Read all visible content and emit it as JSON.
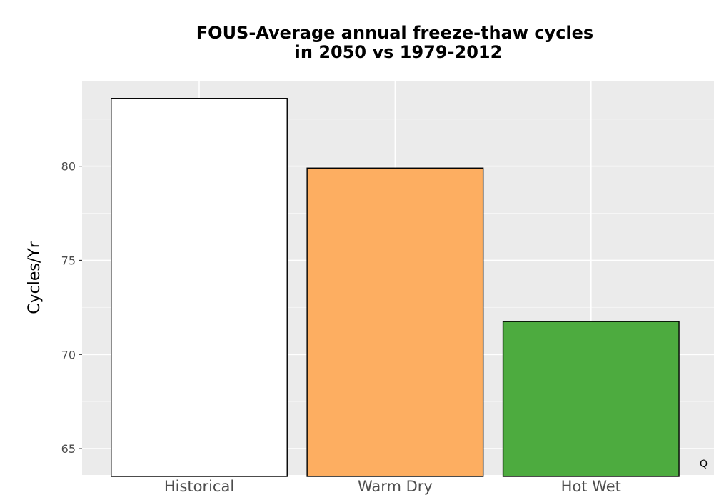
{
  "chart_data": {
    "type": "bar",
    "title_lines": [
      "FOUS-Average annual freeze-thaw cycles",
      "in 2050 vs 1979-2012"
    ],
    "xlabel": "",
    "ylabel": "Cycles/Yr",
    "categories": [
      "Historical",
      "Warm Dry",
      "Hot Wet"
    ],
    "values": [
      83.6,
      79.9,
      71.75
    ],
    "colors": [
      "#ffffff",
      "#fdae61",
      "#4dab3f"
    ],
    "bar_outline": "#000000",
    "ylim": [
      63.6,
      84.5
    ],
    "yticks": [
      65,
      70,
      75,
      80
    ],
    "grid": true,
    "panel_background": "#ebebeb",
    "corner_mark": "Q"
  }
}
